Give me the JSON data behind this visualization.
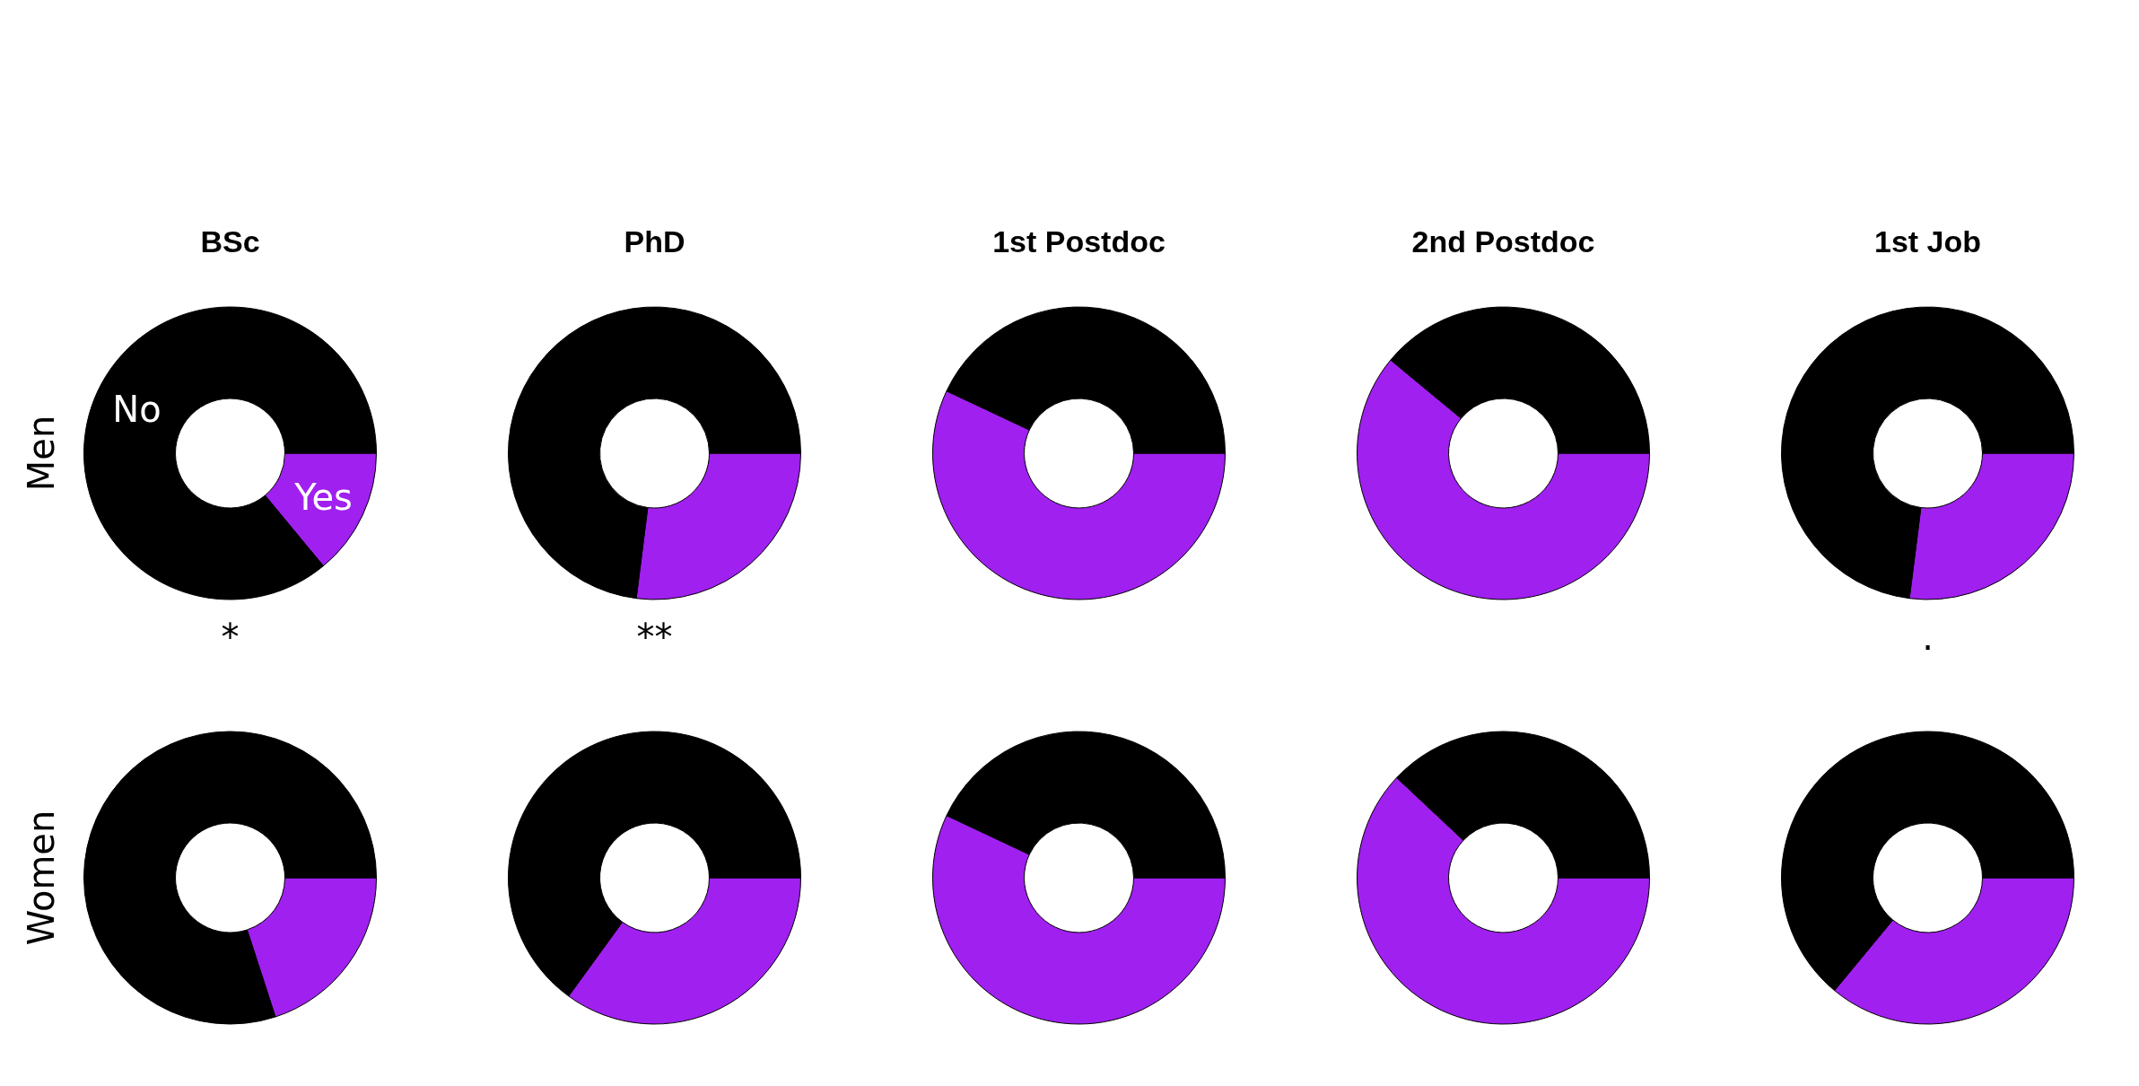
{
  "chart_data": [
    {
      "type": "donut",
      "title": "BSc",
      "ylabel": "Men",
      "categories": [
        "Yes",
        "No"
      ],
      "values": [
        14,
        86
      ],
      "colors": [
        "#a020f0",
        "#000000"
      ],
      "annotations": [
        "*"
      ]
    },
    {
      "type": "donut",
      "title": "PhD",
      "categories": [
        null,
        null
      ],
      "values": [
        27,
        73
      ],
      "colors": [
        "#a020f0",
        "#000000"
      ],
      "annotations": [
        "**"
      ]
    },
    {
      "type": "donut",
      "title": "1st Postdoc",
      "categories": [
        null,
        null
      ],
      "values": [
        57,
        43
      ],
      "colors": [
        "#a020f0",
        "#000000"
      ]
    },
    {
      "type": "donut",
      "title": "2nd Postdoc",
      "categories": [
        null,
        null
      ],
      "values": [
        61,
        39
      ],
      "colors": [
        "#a020f0",
        "#000000"
      ]
    },
    {
      "type": "donut",
      "title": "1st Job",
      "categories": [
        null,
        null
      ],
      "values": [
        27,
        73
      ],
      "colors": [
        "#a020f0",
        "#000000"
      ],
      "annotations": [
        "."
      ]
    },
    {
      "type": "donut",
      "ylabel": "Women",
      "categories": [
        null,
        null
      ],
      "values": [
        20,
        80
      ],
      "colors": [
        "#a020f0",
        "#000000"
      ]
    },
    {
      "type": "donut",
      "categories": [
        null,
        null
      ],
      "values": [
        35,
        65
      ],
      "colors": [
        "#a020f0",
        "#000000"
      ]
    },
    {
      "type": "donut",
      "categories": [
        null,
        null
      ],
      "values": [
        57,
        43
      ],
      "colors": [
        "#a020f0",
        "#000000"
      ]
    },
    {
      "type": "donut",
      "categories": [
        null,
        null
      ],
      "values": [
        62,
        38
      ],
      "colors": [
        "#a020f0",
        "#000000"
      ]
    },
    {
      "type": "donut",
      "categories": [
        null,
        null
      ],
      "values": [
        36,
        64
      ],
      "colors": [
        "#a020f0",
        "#000000"
      ]
    }
  ]
}
